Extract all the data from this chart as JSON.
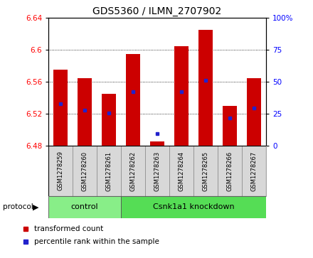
{
  "title": "GDS5360 / ILMN_2707902",
  "samples": [
    "GSM1278259",
    "GSM1278260",
    "GSM1278261",
    "GSM1278262",
    "GSM1278263",
    "GSM1278264",
    "GSM1278265",
    "GSM1278266",
    "GSM1278267"
  ],
  "bar_values": [
    6.575,
    6.565,
    6.545,
    6.595,
    6.485,
    6.605,
    6.625,
    6.53,
    6.565
  ],
  "percentile_values": [
    6.533,
    6.525,
    6.521,
    6.548,
    6.495,
    6.548,
    6.562,
    6.515,
    6.527
  ],
  "bar_bottom": 6.48,
  "ylim_left": [
    6.48,
    6.64
  ],
  "ylim_right": [
    0,
    100
  ],
  "yticks_left": [
    6.48,
    6.52,
    6.56,
    6.6,
    6.64
  ],
  "yticks_left_labels": [
    "6.48",
    "6.52",
    "6.56",
    "6.6",
    "6.64"
  ],
  "yticks_right": [
    0,
    25,
    50,
    75,
    100
  ],
  "yticks_right_labels": [
    "0",
    "25",
    "50",
    "75",
    "100%"
  ],
  "bar_color": "#cc0000",
  "blue_color": "#2222cc",
  "groups": [
    {
      "label": "control",
      "start": 0,
      "end": 3,
      "color": "#88ee88"
    },
    {
      "label": "Csnk1a1 knockdown",
      "start": 3,
      "end": 9,
      "color": "#55dd55"
    }
  ],
  "protocol_label": "protocol",
  "sample_box_color": "#d8d8d8",
  "plot_bg": "#ffffff"
}
